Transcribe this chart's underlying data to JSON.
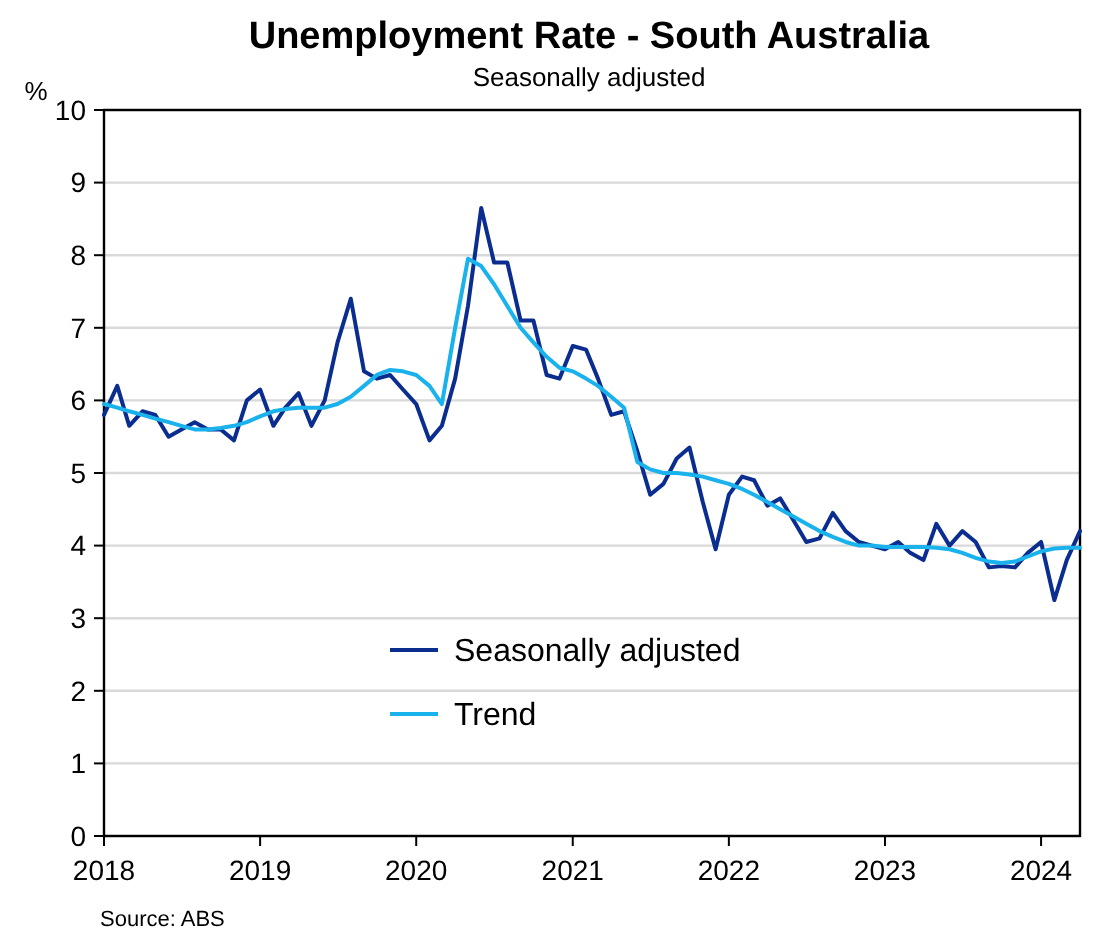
{
  "chart_data": {
    "type": "line",
    "title": "Unemployment Rate - South Australia",
    "subtitle": "Seasonally adjusted",
    "ylabel": "%",
    "x": [
      "2018-01",
      "2018-02",
      "2018-03",
      "2018-04",
      "2018-05",
      "2018-06",
      "2018-07",
      "2018-08",
      "2018-09",
      "2018-10",
      "2018-11",
      "2018-12",
      "2019-01",
      "2019-02",
      "2019-03",
      "2019-04",
      "2019-05",
      "2019-06",
      "2019-07",
      "2019-08",
      "2019-09",
      "2019-10",
      "2019-11",
      "2019-12",
      "2020-01",
      "2020-02",
      "2020-03",
      "2020-04",
      "2020-05",
      "2020-06",
      "2020-07",
      "2020-08",
      "2020-09",
      "2020-10",
      "2020-11",
      "2020-12",
      "2021-01",
      "2021-02",
      "2021-03",
      "2021-04",
      "2021-05",
      "2021-06",
      "2021-07",
      "2021-08",
      "2021-09",
      "2021-10",
      "2021-11",
      "2021-12",
      "2022-01",
      "2022-02",
      "2022-03",
      "2022-04",
      "2022-05",
      "2022-06",
      "2022-07",
      "2022-08",
      "2022-09",
      "2022-10",
      "2022-11",
      "2022-12",
      "2023-01",
      "2023-02",
      "2023-03",
      "2023-04",
      "2023-05",
      "2023-06",
      "2023-07",
      "2023-08",
      "2023-09",
      "2023-10",
      "2023-11",
      "2023-12",
      "2024-01",
      "2024-02",
      "2024-03",
      "2024-04"
    ],
    "series": [
      {
        "name": "Seasonally adjusted",
        "color": "#0a2d8f",
        "values": [
          5.8,
          6.2,
          5.65,
          5.85,
          5.8,
          5.5,
          5.6,
          5.7,
          5.6,
          5.6,
          5.45,
          6.0,
          6.15,
          5.65,
          5.9,
          6.1,
          5.65,
          6.0,
          6.8,
          7.4,
          6.4,
          6.3,
          6.35,
          6.15,
          5.95,
          5.45,
          5.65,
          6.3,
          7.3,
          8.65,
          7.9,
          7.9,
          7.1,
          7.1,
          6.35,
          6.3,
          6.75,
          6.7,
          6.3,
          5.8,
          5.85,
          5.3,
          4.7,
          4.85,
          5.2,
          5.35,
          4.6,
          3.95,
          4.7,
          4.95,
          4.9,
          4.55,
          4.65,
          4.35,
          4.05,
          4.1,
          4.45,
          4.2,
          4.05,
          4.0,
          3.95,
          4.05,
          3.9,
          3.8,
          4.3,
          4.0,
          4.2,
          4.05,
          3.7,
          3.72,
          3.7,
          3.9,
          4.05,
          3.25,
          3.8,
          4.2
        ]
      },
      {
        "name": "Trend",
        "color": "#1ab2ec",
        "values": [
          5.95,
          5.9,
          5.85,
          5.8,
          5.75,
          5.7,
          5.65,
          5.6,
          5.6,
          5.62,
          5.65,
          5.7,
          5.78,
          5.85,
          5.88,
          5.9,
          5.9,
          5.9,
          5.95,
          6.05,
          6.2,
          6.35,
          6.42,
          6.4,
          6.35,
          6.2,
          5.95,
          7.0,
          7.95,
          7.85,
          7.6,
          7.3,
          7.0,
          6.8,
          6.6,
          6.45,
          6.4,
          6.3,
          6.2,
          6.05,
          5.9,
          5.15,
          5.05,
          5.0,
          5.0,
          4.98,
          4.95,
          4.9,
          4.85,
          4.78,
          4.7,
          4.6,
          4.5,
          4.4,
          4.3,
          4.2,
          4.12,
          4.05,
          4.0,
          4.0,
          3.98,
          3.98,
          3.98,
          3.98,
          3.97,
          3.95,
          3.9,
          3.83,
          3.78,
          3.76,
          3.78,
          3.85,
          3.92,
          3.96,
          3.97,
          3.97
        ]
      }
    ],
    "xlim": [
      "2018-01",
      "2024-04"
    ],
    "xticks": [
      {
        "value": "2018",
        "label": "2018"
      },
      {
        "value": "2019",
        "label": "2019"
      },
      {
        "value": "2020",
        "label": "2020"
      },
      {
        "value": "2021",
        "label": "2021"
      },
      {
        "value": "2022",
        "label": "2022"
      },
      {
        "value": "2023",
        "label": "2023"
      },
      {
        "value": "2024",
        "label": "2024"
      }
    ],
    "ylim": [
      0,
      10
    ],
    "yticks": [
      0,
      1,
      2,
      3,
      4,
      5,
      6,
      7,
      8,
      9,
      10
    ],
    "grid": "y",
    "legend": "bottom",
    "marker": "none",
    "line_style": "solid",
    "annotations": [
      "Source: ABS"
    ]
  }
}
